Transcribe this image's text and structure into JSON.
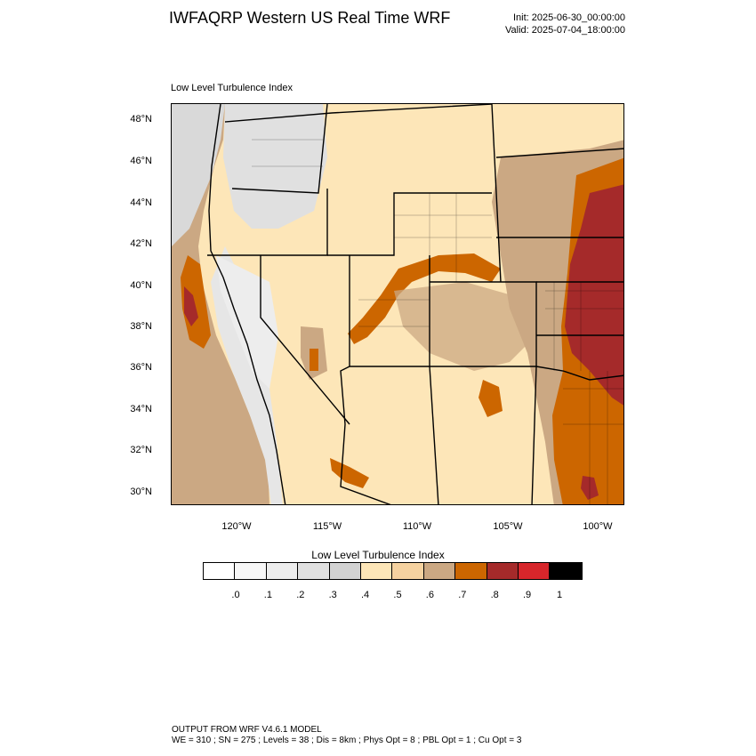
{
  "header": {
    "title": "IWFAQRP Western US Real Time WRF",
    "init": "Init: 2025-06-30_00:00:00",
    "valid": "Valid: 2025-07-04_18:00:00"
  },
  "map": {
    "field_label": "Low Level Turbulence Index",
    "lat_ticks": [
      "48°N",
      "46°N",
      "44°N",
      "42°N",
      "40°N",
      "38°N",
      "36°N",
      "34°N",
      "32°N",
      "30°N"
    ],
    "lon_ticks": [
      "120°W",
      "115°W",
      "110°W",
      "105°W",
      "100°W"
    ]
  },
  "colorbar": {
    "title": "Low Level Turbulence Index",
    "colors": [
      "#ffffff",
      "#f7f7f7",
      "#ededed",
      "#e0e0e0",
      "#d2d2d2",
      "#fde6b8",
      "#f5d2a0",
      "#cba883",
      "#cc6600",
      "#a52a2a",
      "#d7262b",
      "#000000"
    ],
    "labels": [
      ".0",
      ".1",
      ".2",
      ".3",
      ".4",
      ".5",
      ".6",
      ".7",
      ".8",
      ".9",
      "1"
    ]
  },
  "footer": {
    "line1": "OUTPUT FROM WRF V4.6.1 MODEL",
    "line2": "WE = 310 ; SN = 275 ; Levels = 38 ; Dis = 8km ; Phys Opt = 8 ; PBL Opt = 1 ; Cu Opt = 3"
  }
}
